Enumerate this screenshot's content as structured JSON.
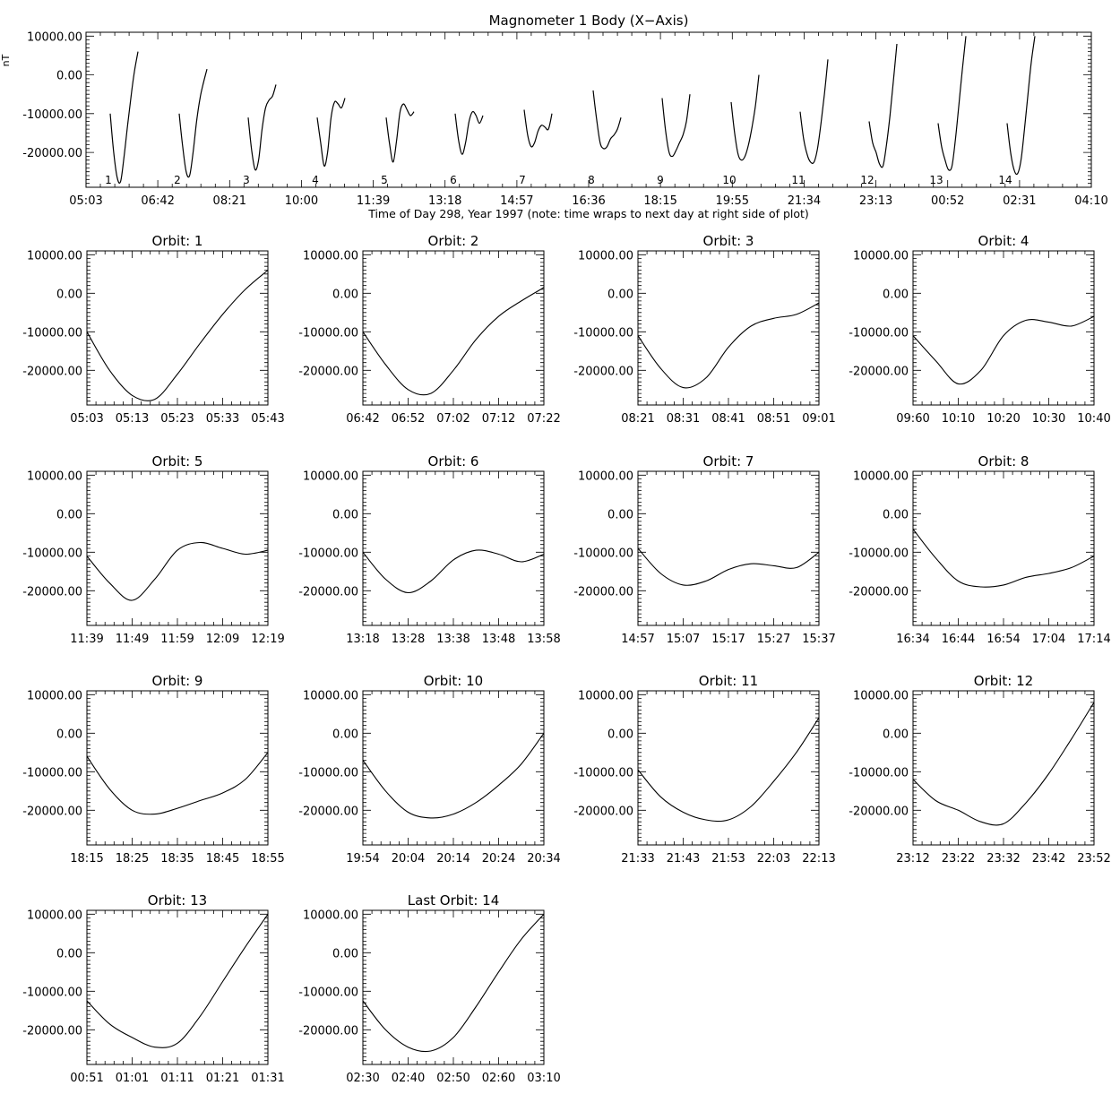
{
  "chart_data": {
    "type": "line",
    "units_label": "nT",
    "overview": {
      "title": "Magnometer 1 Body (X−Axis)",
      "xlabel": "Time of Day 298, Year 1997 (note: time wraps to next day at right side of plot)",
      "x_ticks": [
        "05:03",
        "06:42",
        "08:21",
        "10:00",
        "11:39",
        "13:18",
        "14:57",
        "16:36",
        "18:15",
        "19:55",
        "21:34",
        "23:13",
        "00:52",
        "02:31",
        "04:10"
      ],
      "y_ticks": [
        "10000.00",
        "0.00",
        "-10000.00",
        "-20000.00"
      ],
      "y_tick_values": [
        10000,
        0,
        -10000,
        -20000
      ],
      "ylim": [
        -29000,
        11000
      ],
      "orbit_number_labels": [
        "1",
        "2",
        "3",
        "4",
        "5",
        "6",
        "7",
        "8",
        "9",
        "10",
        "11",
        "12",
        "13",
        "14"
      ]
    },
    "orbits": [
      {
        "title": "Orbit:  1",
        "x_ticks": [
          "05:03",
          "05:13",
          "05:23",
          "05:33",
          "05:43"
        ],
        "x_min": [
          0,
          5,
          10,
          15,
          20,
          25,
          30,
          35,
          40
        ],
        "values": [
          -10000,
          -20000,
          -26500,
          -27500,
          -21000,
          -13000,
          -5500,
          1000,
          6000
        ]
      },
      {
        "title": "Orbit:  2",
        "x_ticks": [
          "06:42",
          "06:52",
          "07:02",
          "07:12",
          "07:22"
        ],
        "x_min": [
          0,
          5,
          10,
          15,
          20,
          25,
          30,
          35,
          40
        ],
        "values": [
          -10000,
          -18500,
          -25000,
          -26000,
          -20000,
          -12000,
          -6000,
          -2000,
          1500
        ]
      },
      {
        "title": "Orbit:  3",
        "x_ticks": [
          "08:21",
          "08:31",
          "08:41",
          "08:51",
          "09:01"
        ],
        "x_min": [
          0,
          5,
          10,
          15,
          20,
          25,
          30,
          35,
          40
        ],
        "values": [
          -11000,
          -19500,
          -24500,
          -22000,
          -14000,
          -8500,
          -6500,
          -5500,
          -2500
        ]
      },
      {
        "title": "Orbit:  4",
        "x_ticks": [
          "09:60",
          "10:10",
          "10:20",
          "10:30",
          "10:40"
        ],
        "x_min": [
          0,
          5,
          10,
          15,
          20,
          25,
          30,
          35,
          40
        ],
        "values": [
          -11000,
          -17500,
          -23500,
          -20000,
          -11000,
          -7000,
          -7500,
          -8500,
          -6000
        ]
      },
      {
        "title": "Orbit:  5",
        "x_ticks": [
          "11:39",
          "11:49",
          "11:59",
          "12:09",
          "12:19"
        ],
        "x_min": [
          0,
          5,
          10,
          15,
          20,
          25,
          30,
          35,
          40
        ],
        "values": [
          -11000,
          -18000,
          -22500,
          -17000,
          -9500,
          -7500,
          -9000,
          -10500,
          -9500
        ]
      },
      {
        "title": "Orbit:  6",
        "x_ticks": [
          "13:18",
          "13:28",
          "13:38",
          "13:48",
          "13:58"
        ],
        "x_min": [
          0,
          5,
          10,
          15,
          20,
          25,
          30,
          35,
          40
        ],
        "values": [
          -10000,
          -17000,
          -20500,
          -17500,
          -12000,
          -9500,
          -10500,
          -12500,
          -10500
        ]
      },
      {
        "title": "Orbit:  7",
        "x_ticks": [
          "14:57",
          "15:07",
          "15:17",
          "15:27",
          "15:37"
        ],
        "x_min": [
          0,
          5,
          10,
          15,
          20,
          25,
          30,
          35,
          40
        ],
        "values": [
          -9000,
          -15500,
          -18500,
          -17500,
          -14500,
          -13000,
          -13500,
          -14000,
          -10000
        ]
      },
      {
        "title": "Orbit:  8",
        "x_ticks": [
          "16:34",
          "16:44",
          "16:54",
          "17:04",
          "17:14"
        ],
        "x_min": [
          0,
          5,
          10,
          15,
          20,
          25,
          30,
          35,
          40
        ],
        "values": [
          -4000,
          -11500,
          -17500,
          -19000,
          -18500,
          -16500,
          -15500,
          -14000,
          -11000
        ]
      },
      {
        "title": "Orbit:  9",
        "x_ticks": [
          "18:15",
          "18:25",
          "18:35",
          "18:45",
          "18:55"
        ],
        "x_min": [
          0,
          5,
          10,
          15,
          20,
          25,
          30,
          35,
          40
        ],
        "values": [
          -6000,
          -14500,
          -20000,
          -21000,
          -19500,
          -17500,
          -15500,
          -12000,
          -5000
        ]
      },
      {
        "title": "Orbit:  10",
        "x_ticks": [
          "19:54",
          "20:04",
          "20:14",
          "20:24",
          "20:34"
        ],
        "x_min": [
          0,
          5,
          10,
          15,
          20,
          25,
          30,
          35,
          40
        ],
        "values": [
          -7000,
          -15000,
          -20500,
          -22000,
          -21000,
          -18000,
          -13500,
          -8000,
          0
        ]
      },
      {
        "title": "Orbit:  11",
        "x_ticks": [
          "21:33",
          "21:43",
          "21:53",
          "22:03",
          "22:13"
        ],
        "x_min": [
          0,
          5,
          10,
          15,
          20,
          25,
          30,
          35,
          40
        ],
        "values": [
          -9500,
          -16500,
          -20500,
          -22500,
          -22500,
          -19000,
          -12500,
          -5000,
          4000
        ]
      },
      {
        "title": "Orbit:  12",
        "x_ticks": [
          "23:12",
          "23:22",
          "23:32",
          "23:42",
          "23:52"
        ],
        "x_min": [
          0,
          5,
          10,
          15,
          20,
          25,
          30,
          35,
          40
        ],
        "values": [
          -12000,
          -17500,
          -20000,
          -23000,
          -23500,
          -18000,
          -10500,
          -1500,
          8000
        ]
      },
      {
        "title": "Orbit:  13",
        "x_ticks": [
          "00:51",
          "01:01",
          "01:11",
          "01:21",
          "01:31"
        ],
        "x_min": [
          0,
          5,
          10,
          15,
          20,
          25,
          30,
          35,
          40
        ],
        "values": [
          -12500,
          -18500,
          -22000,
          -24500,
          -23500,
          -16500,
          -7500,
          1500,
          10000
        ]
      },
      {
        "title": "Last Orbit:  14",
        "x_ticks": [
          "02:30",
          "02:40",
          "02:50",
          "02:60",
          "03:10"
        ],
        "x_min": [
          0,
          5,
          10,
          15,
          20,
          25,
          30,
          35,
          40
        ],
        "values": [
          -12500,
          -20000,
          -24500,
          -25500,
          -22000,
          -14000,
          -5000,
          3500,
          10000
        ]
      }
    ]
  }
}
